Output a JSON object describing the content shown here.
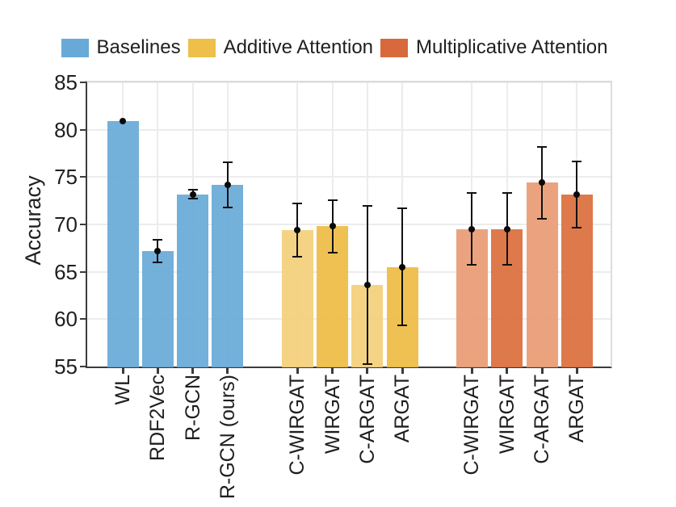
{
  "chart_data": {
    "type": "bar",
    "title": "",
    "xlabel": "",
    "ylabel": "Accuracy",
    "yticks": [
      55,
      60,
      65,
      70,
      75,
      80,
      85
    ],
    "ylim": [
      54.8,
      85.2
    ],
    "grid": "on",
    "legend_position": "top-center",
    "legend": [
      {
        "label": "Baselines",
        "color": "#68aad7"
      },
      {
        "label": "Additive Attention",
        "color": "#eec04a"
      },
      {
        "label": "Multiplicative Attention",
        "color": "#d8693c"
      }
    ],
    "error_bar_color": "#111111",
    "groups": [
      {
        "name": "Baselines",
        "bars": [
          {
            "label": "WL",
            "value": 80.9,
            "err": 0.0,
            "color": "#68aad7"
          },
          {
            "label": "RDF2Vec",
            "value": 67.2,
            "err": 1.2,
            "color": "#68aad7"
          },
          {
            "label": "R-GCN",
            "value": 73.2,
            "err": 0.5,
            "color": "#68aad7"
          },
          {
            "label": "R-GCN (ours)",
            "value": 74.2,
            "err": 2.4,
            "color": "#68aad7"
          }
        ]
      },
      {
        "name": "Additive Attention",
        "bars": [
          {
            "label": "C-WIRGAT",
            "value": 69.4,
            "err": 2.8,
            "color": "#f4d07b"
          },
          {
            "label": "WIRGAT",
            "value": 69.8,
            "err": 2.8,
            "color": "#eebc45"
          },
          {
            "label": "C-ARGAT",
            "value": 63.6,
            "err": 8.4,
            "color": "#f4d07b"
          },
          {
            "label": "ARGAT",
            "value": 65.5,
            "err": 6.2,
            "color": "#eebc45"
          }
        ]
      },
      {
        "name": "Multiplicative Attention",
        "bars": [
          {
            "label": "C-WIRGAT",
            "value": 69.5,
            "err": 3.8,
            "color": "#e99c75"
          },
          {
            "label": "WIRGAT",
            "value": 69.5,
            "err": 3.8,
            "color": "#dc6f3d"
          },
          {
            "label": "C-ARGAT",
            "value": 74.4,
            "err": 3.8,
            "color": "#e99c75"
          },
          {
            "label": "ARGAT",
            "value": 73.2,
            "err": 3.5,
            "color": "#dc6f3d"
          }
        ]
      }
    ]
  }
}
